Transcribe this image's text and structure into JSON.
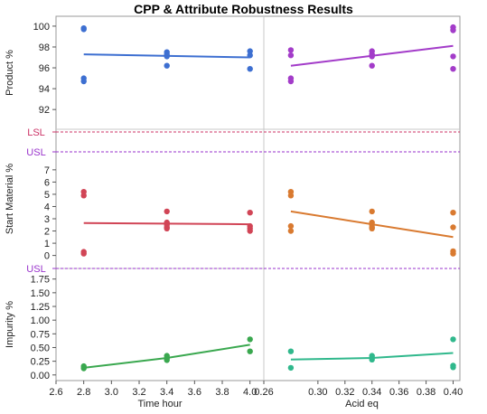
{
  "chart_data": {
    "type": "scatter",
    "title": "CPP & Attribute Robustness Results",
    "xaxes": [
      {
        "label": "Time hour",
        "xlim": [
          2.6,
          4.1
        ],
        "ticks": [
          2.6,
          2.8,
          3.0,
          3.2,
          3.4,
          3.6,
          3.8,
          4.0
        ],
        "tick_labels": [
          "2.6",
          "2.8",
          "3.0",
          "3.2",
          "3.4",
          "3.6",
          "3.8",
          "4.0"
        ]
      },
      {
        "label": "Acid eq",
        "xlim": [
          0.26,
          0.405
        ],
        "ticks": [
          0.26,
          0.3,
          0.32,
          0.34,
          0.36,
          0.38,
          0.4
        ],
        "tick_labels": [
          "0.26",
          "0.30",
          "0.32",
          "0.34",
          "0.36",
          "0.38",
          "0.40"
        ]
      }
    ],
    "rows": [
      {
        "ylabel": "Product %",
        "ylim": [
          90.8,
          100.6
        ],
        "ticks": [
          92,
          94,
          96,
          98,
          100
        ],
        "tick_labels": [
          "92",
          "94",
          "96",
          "98",
          "100"
        ],
        "limit_lines": [
          {
            "label": "LSL",
            "value": 89.5,
            "color": "#cc3366"
          }
        ],
        "panels": [
          {
            "color": "#3d6fd1",
            "points": [
              [
                2.8,
                99.8
              ],
              [
                2.8,
                99.7
              ],
              [
                2.8,
                95.0
              ],
              [
                2.8,
                94.7
              ],
              [
                3.4,
                97.5
              ],
              [
                3.4,
                97.3
              ],
              [
                3.4,
                97.1
              ],
              [
                3.4,
                96.2
              ],
              [
                4.0,
                97.6
              ],
              [
                4.0,
                97.2
              ],
              [
                4.0,
                95.9
              ]
            ],
            "fit": [
              [
                2.8,
                97.3
              ],
              [
                4.0,
                97.0
              ]
            ]
          },
          {
            "color": "#a33cc9",
            "points": [
              [
                0.28,
                97.7
              ],
              [
                0.28,
                97.2
              ],
              [
                0.28,
                95.0
              ],
              [
                0.28,
                94.7
              ],
              [
                0.34,
                97.6
              ],
              [
                0.34,
                97.3
              ],
              [
                0.34,
                97.1
              ],
              [
                0.34,
                96.2
              ],
              [
                0.4,
                99.9
              ],
              [
                0.4,
                99.6
              ],
              [
                0.4,
                97.1
              ],
              [
                0.4,
                95.9
              ]
            ],
            "fit": [
              [
                0.28,
                96.2
              ],
              [
                0.4,
                98.1
              ]
            ]
          }
        ]
      },
      {
        "ylabel": "Start Material %",
        "ylim": [
          -0.25,
          7.95
        ],
        "ticks": [
          0,
          1,
          2,
          3,
          4,
          5,
          6,
          7
        ],
        "tick_labels": [
          "0",
          "1",
          "2",
          "3",
          "4",
          "5",
          "6",
          "7"
        ],
        "limit_lines": [
          {
            "label": "USL",
            "value": 10.0,
            "color": "#9933cc"
          }
        ],
        "panels": [
          {
            "color": "#d14556",
            "points": [
              [
                2.8,
                5.2
              ],
              [
                2.8,
                4.9
              ],
              [
                2.8,
                0.3
              ],
              [
                2.8,
                0.15
              ],
              [
                3.4,
                3.6
              ],
              [
                3.4,
                2.7
              ],
              [
                3.4,
                2.5
              ],
              [
                3.4,
                2.3
              ],
              [
                3.4,
                2.2
              ],
              [
                4.0,
                3.5
              ],
              [
                4.0,
                2.4
              ],
              [
                4.0,
                2.2
              ],
              [
                4.0,
                2.0
              ]
            ],
            "fit": [
              [
                2.8,
                2.65
              ],
              [
                4.0,
                2.55
              ]
            ]
          },
          {
            "color": "#d97a30",
            "points": [
              [
                0.28,
                5.2
              ],
              [
                0.28,
                4.9
              ],
              [
                0.28,
                2.4
              ],
              [
                0.28,
                2.0
              ],
              [
                0.34,
                3.6
              ],
              [
                0.34,
                2.7
              ],
              [
                0.34,
                2.5
              ],
              [
                0.34,
                2.3
              ],
              [
                0.34,
                2.2
              ],
              [
                0.4,
                3.5
              ],
              [
                0.4,
                2.3
              ],
              [
                0.4,
                0.35
              ],
              [
                0.4,
                0.15
              ]
            ],
            "fit": [
              [
                0.28,
                3.6
              ],
              [
                0.4,
                1.5
              ]
            ]
          }
        ]
      },
      {
        "ylabel": "Impurity %",
        "ylim": [
          -0.02,
          1.91
        ],
        "ticks": [
          0,
          0.25,
          0.5,
          0.75,
          1.0,
          1.25,
          1.5,
          1.75
        ],
        "tick_labels": [
          "0.00",
          "0.25",
          "0.50",
          "0.75",
          "1.00",
          "1.25",
          "1.50",
          "1.75"
        ],
        "limit_lines": [
          {
            "label": "USL",
            "value": 2.0,
            "color": "#9933cc"
          }
        ],
        "panels": [
          {
            "color": "#3aa84f",
            "points": [
              [
                2.8,
                0.16
              ],
              [
                2.8,
                0.12
              ],
              [
                3.4,
                0.35
              ],
              [
                3.4,
                0.3
              ],
              [
                3.4,
                0.27
              ],
              [
                4.0,
                0.65
              ],
              [
                4.0,
                0.43
              ]
            ],
            "fit": [
              [
                2.8,
                0.13
              ],
              [
                3.4,
                0.31
              ],
              [
                4.0,
                0.55
              ]
            ]
          },
          {
            "color": "#30b88c",
            "points": [
              [
                0.28,
                0.43
              ],
              [
                0.28,
                0.13
              ],
              [
                0.34,
                0.35
              ],
              [
                0.34,
                0.32
              ],
              [
                0.34,
                0.28
              ],
              [
                0.4,
                0.65
              ],
              [
                0.4,
                0.17
              ],
              [
                0.4,
                0.14
              ]
            ],
            "fit": [
              [
                0.28,
                0.28
              ],
              [
                0.34,
                0.31
              ],
              [
                0.4,
                0.4
              ]
            ]
          }
        ]
      }
    ],
    "grid": false,
    "legend": "none"
  }
}
